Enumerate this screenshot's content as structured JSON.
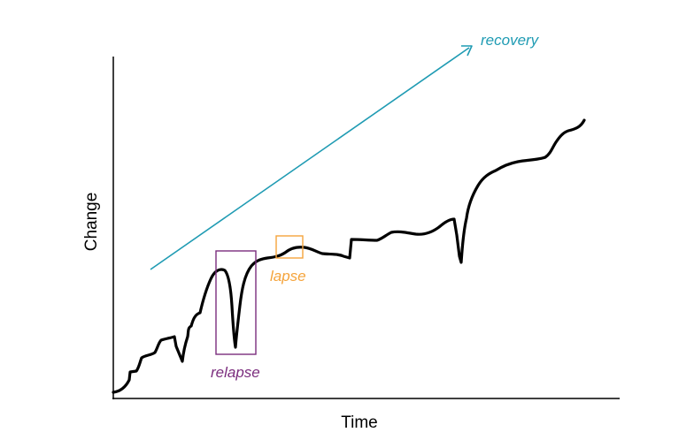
{
  "diagram": {
    "x_axis_label": "Time",
    "y_axis_label": "Change",
    "annotations": {
      "recovery": {
        "text": "recovery",
        "color": "#1f9bb3"
      },
      "lapse": {
        "text": "lapse",
        "color": "#f5a43c"
      },
      "relapse": {
        "text": "relapse",
        "color": "#7b2d7e"
      }
    },
    "curve": {
      "color": "#000000",
      "description_shape": "rising jagged trajectory with a deep dip at relapse and a small wobble at lapse"
    }
  }
}
